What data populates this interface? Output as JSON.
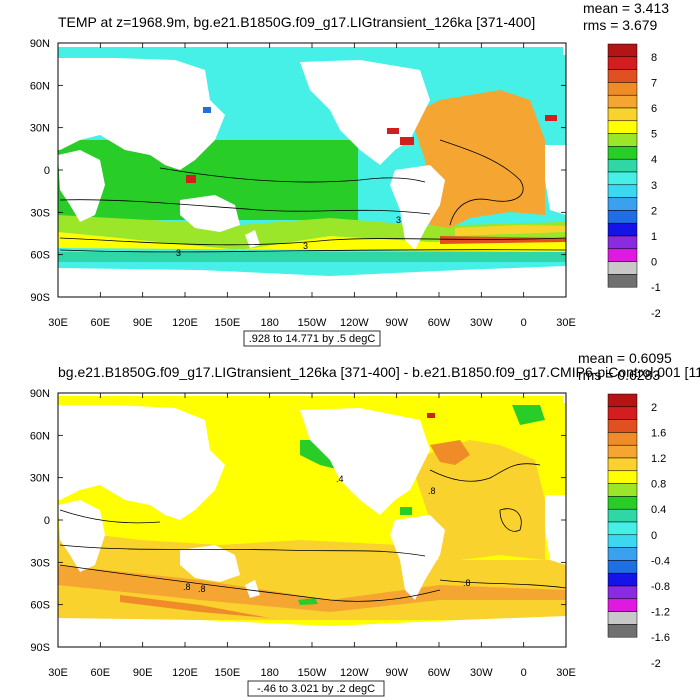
{
  "colors": {
    "ocean_palette": [
      "#707070",
      "#c8c8c8",
      "#e019e0",
      "#8a2be2",
      "#1414e6",
      "#1e6fe6",
      "#3ca0f0",
      "#3cd7f0",
      "#46f0e6",
      "#2fd6a6",
      "#28cd28",
      "#9be628",
      "#ffff00",
      "#fad22d",
      "#f5a532",
      "#f08c28",
      "#e05020",
      "#d21e1e",
      "#b41414"
    ],
    "land": "#ffffff",
    "contour": "#000000"
  },
  "chart_data": [
    {
      "type": "heatmap",
      "title": "TEMP at z=1968.9m, bg.e21.B1850G.f09_g17.LIGtransient_126ka [371-400]",
      "stats": {
        "mean": "mean = 3.413",
        "rms": "rms = 3.679"
      },
      "x_ticks": [
        "30E",
        "60E",
        "90E",
        "120E",
        "150E",
        "180",
        "150W",
        "120W",
        "90W",
        "60W",
        "30W",
        "0",
        "30E"
      ],
      "y_ticks": [
        "90N",
        "60N",
        "30N",
        "0",
        "30S",
        "60S",
        "90S"
      ],
      "contour_info": ".928 to 14.771 by .5 degC",
      "contour_labels": [
        "3",
        "3",
        "3"
      ],
      "colorbar_labels": [
        "8",
        "7",
        "6",
        "5",
        "4",
        "3",
        "2",
        "1",
        "0",
        "-1",
        "-2"
      ],
      "colorbar_colors": [
        "#b41414",
        "#d21e1e",
        "#e05020",
        "#f08c28",
        "#f5a532",
        "#fad22d",
        "#ffff00",
        "#9be628",
        "#28cd28",
        "#2fd6a6",
        "#46f0e6",
        "#3cd7f0",
        "#3ca0f0",
        "#1e6fe6",
        "#1414e6",
        "#8a2be2",
        "#e019e0",
        "#c8c8c8",
        "#707070"
      ],
      "ylim": [
        -90,
        90
      ],
      "xlim": [
        30,
        390
      ]
    },
    {
      "type": "heatmap",
      "title": "bg.e21.B1850G.f09_g17.LIGtransient_126ka [371-400] - b.e21.B1850.f09_g17.CMIP6-piControl.001 [11",
      "stats": {
        "mean": "mean = 0.6095",
        "rms": "rms = 0.6283"
      },
      "x_ticks": [
        "30E",
        "60E",
        "90E",
        "120E",
        "150E",
        "180",
        "150W",
        "120W",
        "90W",
        "60W",
        "30W",
        "0",
        "30E"
      ],
      "y_ticks": [
        "90N",
        "60N",
        "30N",
        "0",
        "30S",
        "60S",
        "90S"
      ],
      "contour_info": "-.46 to 3.021 by .2 degC",
      "contour_labels": [
        ".4",
        ".8",
        ".8",
        ".8",
        ".8"
      ],
      "colorbar_labels": [
        "2",
        "1.6",
        "1.2",
        "0.8",
        "0.4",
        "0",
        "-0.4",
        "-0.8",
        "-1.2",
        "-1.6",
        "-2"
      ],
      "colorbar_colors": [
        "#b41414",
        "#d21e1e",
        "#e05020",
        "#f08c28",
        "#f5a532",
        "#fad22d",
        "#ffff00",
        "#9be628",
        "#28cd28",
        "#2fd6a6",
        "#46f0e6",
        "#3cd7f0",
        "#3ca0f0",
        "#1e6fe6",
        "#1414e6",
        "#8a2be2",
        "#e019e0",
        "#c8c8c8",
        "#707070"
      ],
      "ylim": [
        -90,
        90
      ],
      "xlim": [
        30,
        390
      ]
    }
  ]
}
